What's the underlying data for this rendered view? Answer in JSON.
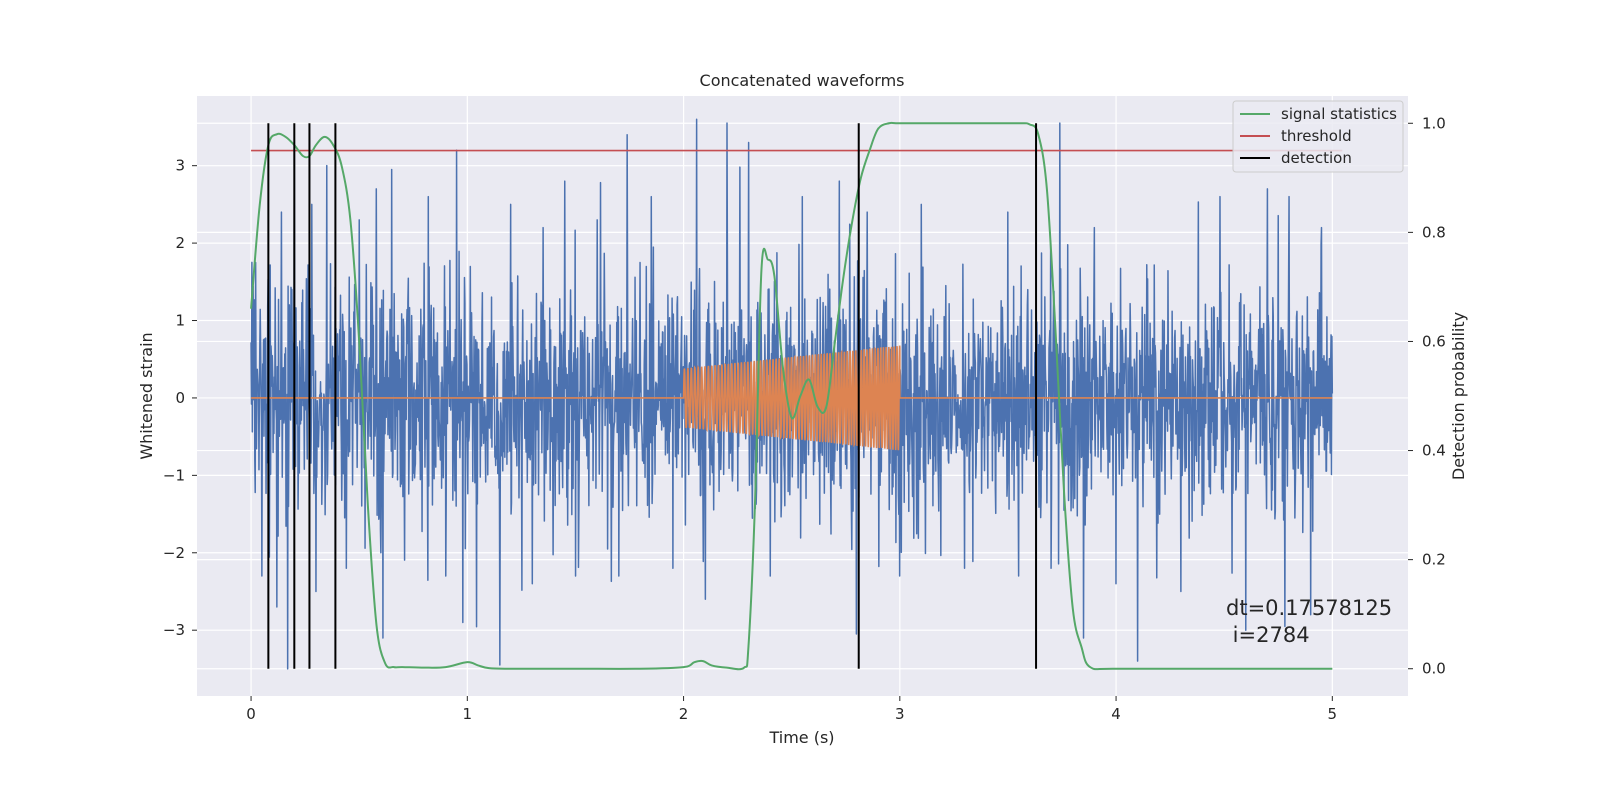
{
  "chart_data": {
    "type": "line",
    "title": "Concatenated waveforms",
    "xlabel": "Time (s)",
    "ylabel": "Whitened strain",
    "ylabel_right": "Detection probability",
    "xlim": [
      -0.25,
      5.35
    ],
    "ylim": [
      -3.85,
      3.9
    ],
    "ylim_right": [
      -0.05,
      1.05
    ],
    "x_ticks": [
      0,
      1,
      2,
      3,
      4,
      5
    ],
    "x_tick_labels": [
      "0",
      "1",
      "2",
      "3",
      "4",
      "5"
    ],
    "y_ticks": [
      3,
      2,
      1,
      0,
      -1,
      -2,
      -3
    ],
    "y_tick_labels": [
      "3",
      "2",
      "1",
      "0",
      "−1",
      "−2",
      "−3"
    ],
    "y2_ticks": [
      1.0,
      0.8,
      0.6,
      0.4,
      0.2,
      0.0
    ],
    "y2_tick_labels": [
      "1.0",
      "0.8",
      "0.6",
      "0.4",
      "0.2",
      "0.0"
    ],
    "grid": true,
    "legend_position": "top-right",
    "legend": [
      {
        "label": "signal statistics",
        "color": "#55a868"
      },
      {
        "label": "threshold",
        "color": "#c44e52"
      },
      {
        "label": "detection",
        "color": "#000000"
      }
    ],
    "annotation": {
      "line1": "dt=0.17578125",
      "line2": " i=2784"
    },
    "noise_series": {
      "color": "#4c72b0",
      "x_range": [
        0,
        5
      ],
      "amplitude_range": [
        -3.5,
        3.6
      ],
      "typical_envelope": [
        -0.7,
        0.7
      ]
    },
    "chirp_series": {
      "color": "#dd8452",
      "x_range": [
        2.0,
        3.0
      ],
      "amplitude_start": 0.38,
      "amplitude_end": 0.68,
      "baseline": 0
    },
    "threshold_series": {
      "axis": "right",
      "value": 0.95,
      "x_range": [
        0,
        5
      ]
    },
    "detection_times": [
      0.08,
      0.2,
      0.27,
      0.39,
      2.81,
      3.63
    ],
    "signal_statistics": {
      "axis": "right",
      "x": [
        0,
        0.04,
        0.08,
        0.12,
        0.16,
        0.2,
        0.24,
        0.27,
        0.3,
        0.34,
        0.38,
        0.42,
        0.46,
        0.5,
        0.54,
        0.58,
        0.62,
        0.66,
        0.7,
        0.8,
        0.9,
        1.0,
        1.05,
        1.1,
        1.2,
        1.5,
        1.8,
        2.0,
        2.05,
        2.09,
        2.13,
        2.2,
        2.28,
        2.3,
        2.33,
        2.36,
        2.39,
        2.42,
        2.46,
        2.5,
        2.54,
        2.58,
        2.62,
        2.66,
        2.7,
        2.74,
        2.78,
        2.82,
        2.86,
        2.9,
        2.95,
        3.0,
        3.2,
        3.4,
        3.55,
        3.6,
        3.64,
        3.68,
        3.72,
        3.76,
        3.8,
        3.84,
        3.88,
        4.0,
        4.5,
        5.0
      ],
      "y": [
        0.66,
        0.85,
        0.96,
        0.98,
        0.975,
        0.96,
        0.94,
        0.94,
        0.96,
        0.975,
        0.96,
        0.92,
        0.82,
        0.6,
        0.3,
        0.08,
        0.01,
        0.003,
        0.003,
        0.002,
        0.003,
        0.012,
        0.006,
        0.001,
        0.0,
        0.0,
        0.0,
        0.003,
        0.012,
        0.014,
        0.006,
        0.002,
        0.002,
        0.04,
        0.3,
        0.73,
        0.75,
        0.72,
        0.55,
        0.46,
        0.5,
        0.53,
        0.48,
        0.48,
        0.6,
        0.72,
        0.82,
        0.9,
        0.95,
        0.99,
        1.0,
        1.0,
        1.0,
        1.0,
        1.0,
        0.998,
        0.98,
        0.88,
        0.62,
        0.32,
        0.11,
        0.04,
        0.003,
        0.0,
        0.0,
        0.0
      ]
    },
    "spike_events": [
      {
        "x": 0.05,
        "y": 1.55
      },
      {
        "x": 0.14,
        "y": 2.4
      },
      {
        "x": 0.2,
        "y": 3.2
      },
      {
        "x": 0.28,
        "y": 2.5
      },
      {
        "x": 0.35,
        "y": 3.0
      },
      {
        "x": 0.5,
        "y": 2.3
      },
      {
        "x": 0.58,
        "y": 2.7
      },
      {
        "x": 0.65,
        "y": 2.95
      },
      {
        "x": 0.82,
        "y": 2.6
      },
      {
        "x": 0.95,
        "y": 3.2
      },
      {
        "x": 1.2,
        "y": 2.5
      },
      {
        "x": 1.35,
        "y": 2.2
      },
      {
        "x": 1.45,
        "y": 2.8
      },
      {
        "x": 1.6,
        "y": 2.3
      },
      {
        "x": 1.74,
        "y": 3.4
      },
      {
        "x": 1.85,
        "y": 2.6
      },
      {
        "x": 2.06,
        "y": 3.6
      },
      {
        "x": 2.2,
        "y": 3.55
      },
      {
        "x": 2.3,
        "y": 3.3
      },
      {
        "x": 2.55,
        "y": 2.6
      },
      {
        "x": 2.72,
        "y": 2.8
      },
      {
        "x": 2.85,
        "y": 2.4
      },
      {
        "x": 3.1,
        "y": 2.5
      },
      {
        "x": 3.3,
        "y": 2.6
      },
      {
        "x": 3.5,
        "y": 2.4
      },
      {
        "x": 3.74,
        "y": 3.55
      },
      {
        "x": 3.9,
        "y": 2.2
      },
      {
        "x": 4.1,
        "y": 2.5
      },
      {
        "x": 4.3,
        "y": 2.6
      },
      {
        "x": 4.48,
        "y": 2.6
      },
      {
        "x": 4.7,
        "y": 2.7
      },
      {
        "x": 4.8,
        "y": 2.6
      },
      {
        "x": 4.95,
        "y": 2.2
      },
      {
        "x": 0.05,
        "y": -2.3
      },
      {
        "x": 0.12,
        "y": -2.7
      },
      {
        "x": 0.17,
        "y": -3.5
      },
      {
        "x": 0.3,
        "y": -2.5
      },
      {
        "x": 0.44,
        "y": -2.2
      },
      {
        "x": 0.6,
        "y": -2.0
      },
      {
        "x": 0.61,
        "y": -3.1
      },
      {
        "x": 0.9,
        "y": -2.3
      },
      {
        "x": 0.98,
        "y": -2.9
      },
      {
        "x": 1.15,
        "y": -3.45
      },
      {
        "x": 1.3,
        "y": -2.4
      },
      {
        "x": 1.5,
        "y": -2.3
      },
      {
        "x": 1.7,
        "y": -2.3
      },
      {
        "x": 1.95,
        "y": -2.2
      },
      {
        "x": 2.1,
        "y": -2.6
      },
      {
        "x": 2.4,
        "y": -2.3
      },
      {
        "x": 2.8,
        "y": -3.05
      },
      {
        "x": 3.0,
        "y": -2.3
      },
      {
        "x": 3.3,
        "y": -2.2
      },
      {
        "x": 3.55,
        "y": -2.3
      },
      {
        "x": 3.7,
        "y": -2.2
      },
      {
        "x": 3.85,
        "y": -3.1
      },
      {
        "x": 4.0,
        "y": -2.4
      },
      {
        "x": 4.1,
        "y": -3.4
      },
      {
        "x": 4.3,
        "y": -2.5
      },
      {
        "x": 4.6,
        "y": -3.0
      },
      {
        "x": 4.78,
        "y": -2.95
      },
      {
        "x": 4.9,
        "y": -2.8
      }
    ]
  }
}
